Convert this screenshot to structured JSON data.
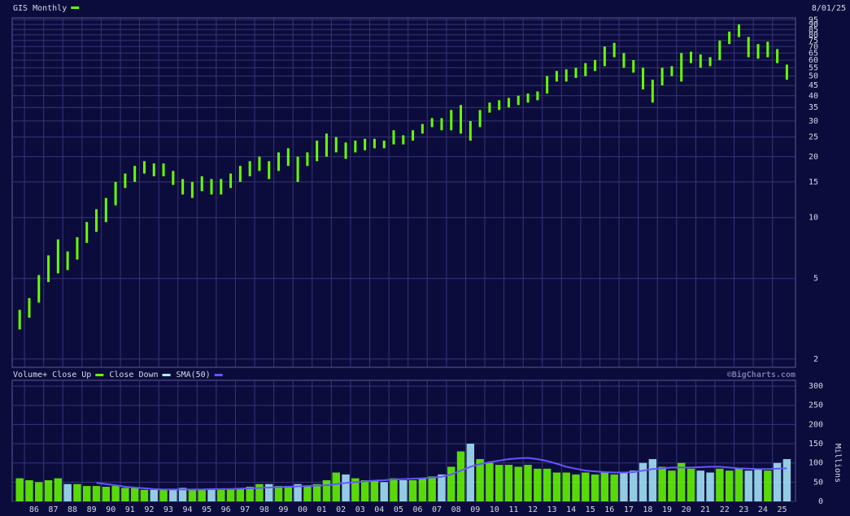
{
  "chart_data": [
    {
      "type": "range",
      "title": "GIS Monthly",
      "date": "8/01/25",
      "color": "#66ff00",
      "log_scale": true,
      "grid": true,
      "x": [
        1985.75,
        1986.25,
        1986.75,
        1987.25,
        1987.75,
        1988.25,
        1988.75,
        1989.25,
        1989.75,
        1990.25,
        1990.75,
        1991.25,
        1991.75,
        1992.25,
        1992.75,
        1993.25,
        1993.75,
        1994.25,
        1994.75,
        1995.25,
        1995.75,
        1996.25,
        1996.75,
        1997.25,
        1997.75,
        1998.25,
        1998.75,
        1999.25,
        1999.75,
        2000.25,
        2000.75,
        2001.25,
        2001.75,
        2002.25,
        2002.75,
        2003.25,
        2003.75,
        2004.25,
        2004.75,
        2005.25,
        2005.75,
        2006.25,
        2006.75,
        2007.25,
        2007.75,
        2008.25,
        2008.75,
        2009.25,
        2009.75,
        2010.25,
        2010.75,
        2011.25,
        2011.75,
        2012.25,
        2012.75,
        2013.25,
        2013.75,
        2014.25,
        2014.75,
        2015.25,
        2015.75,
        2016.25,
        2016.75,
        2017.25,
        2017.75,
        2018.25,
        2018.75,
        2019.25,
        2019.75,
        2020.25,
        2020.75,
        2021.25,
        2021.75,
        2022.25,
        2022.75,
        2023.25,
        2023.75,
        2024.25,
        2024.75,
        2025.25,
        2025.75
      ],
      "low": [
        2.8,
        3.2,
        3.8,
        4.8,
        5.3,
        5.5,
        6.2,
        7.5,
        8.5,
        9.5,
        11.5,
        14,
        15,
        16.5,
        16,
        16,
        14.5,
        13,
        12.5,
        13.5,
        13,
        13,
        14,
        15,
        16,
        17,
        15.5,
        17,
        18,
        15,
        18,
        19,
        20,
        21,
        19.5,
        21,
        21.5,
        22,
        22,
        23,
        23,
        24,
        26,
        28,
        27,
        27,
        26,
        24,
        28,
        33,
        34,
        35,
        36,
        37,
        38,
        41,
        47,
        47,
        49,
        50,
        53,
        56,
        62,
        55,
        52,
        43,
        37,
        45,
        50,
        47,
        58,
        55,
        56,
        60,
        72,
        78,
        62,
        61,
        62,
        58,
        48
      ],
      "high": [
        3.5,
        4,
        5.2,
        6.5,
        7.8,
        6.8,
        8,
        9.5,
        11,
        12.5,
        15,
        16.5,
        18,
        19,
        18.5,
        18.5,
        17,
        15.5,
        15,
        16,
        15.5,
        15.5,
        16.5,
        18,
        19,
        20,
        19,
        21,
        22,
        20,
        21,
        24,
        26,
        25,
        23.5,
        24,
        24.5,
        24.5,
        24,
        27,
        25.5,
        27,
        29,
        31,
        31,
        34,
        36,
        30,
        34,
        37,
        38,
        39,
        40,
        41,
        42,
        50,
        53,
        54,
        55,
        58,
        60,
        70,
        73,
        65,
        60,
        55,
        48,
        55,
        56,
        65,
        66,
        64,
        62,
        75,
        83,
        90,
        78,
        72,
        74,
        68,
        57
      ],
      "xlim": [
        1985.36,
        2026.2
      ],
      "xticks": [
        {
          "value": 1986,
          "label": "86"
        },
        {
          "value": 1987,
          "label": "87"
        },
        {
          "value": 1988,
          "label": "88"
        },
        {
          "value": 1989,
          "label": "89"
        },
        {
          "value": 1990,
          "label": "90"
        },
        {
          "value": 1991,
          "label": "91"
        },
        {
          "value": 1992,
          "label": "92"
        },
        {
          "value": 1993,
          "label": "93"
        },
        {
          "value": 1994,
          "label": "94"
        },
        {
          "value": 1995,
          "label": "95"
        },
        {
          "value": 1996,
          "label": "96"
        },
        {
          "value": 1997,
          "label": "97"
        },
        {
          "value": 1998,
          "label": "98"
        },
        {
          "value": 1999,
          "label": "99"
        },
        {
          "value": 2000,
          "label": "00"
        },
        {
          "value": 2001,
          "label": "01"
        },
        {
          "value": 2002,
          "label": "02"
        },
        {
          "value": 2003,
          "label": "03"
        },
        {
          "value": 2004,
          "label": "04"
        },
        {
          "value": 2005,
          "label": "05"
        },
        {
          "value": 2006,
          "label": "06"
        },
        {
          "value": 2007,
          "label": "07"
        },
        {
          "value": 2008,
          "label": "08"
        },
        {
          "value": 2009,
          "label": "09"
        },
        {
          "value": 2010,
          "label": "10"
        },
        {
          "value": 2011,
          "label": "11"
        },
        {
          "value": 2012,
          "label": "12"
        },
        {
          "value": 2013,
          "label": "13"
        },
        {
          "value": 2014,
          "label": "14"
        },
        {
          "value": 2015,
          "label": "15"
        },
        {
          "value": 2016,
          "label": "16"
        },
        {
          "value": 2017,
          "label": "17"
        },
        {
          "value": 2018,
          "label": "18"
        },
        {
          "value": 2019,
          "label": "19"
        },
        {
          "value": 2020,
          "label": "20"
        },
        {
          "value": 2021,
          "label": "21"
        },
        {
          "value": 2022,
          "label": "22"
        },
        {
          "value": 2023,
          "label": "23"
        },
        {
          "value": 2024,
          "label": "24"
        },
        {
          "value": 2025,
          "label": "25"
        }
      ],
      "ylim": [
        1.82,
        97
      ],
      "yticks": [
        2,
        5,
        10,
        15,
        20,
        25,
        30,
        35,
        40,
        45,
        50,
        55,
        60,
        65,
        70,
        75,
        80,
        85,
        90,
        95
      ]
    },
    {
      "type": "bar",
      "credit": "©BigCharts.com",
      "y_label": "Millions",
      "grid": true,
      "ylim": [
        0,
        315
      ],
      "yticks": [
        0,
        50,
        100,
        150,
        200,
        250,
        300
      ],
      "series": [
        {
          "name": "Volume+ Close Up",
          "color": "#66ff00",
          "values": [
            60,
            55,
            50,
            55,
            60,
            null,
            45,
            40,
            40,
            38,
            40,
            35,
            35,
            30,
            null,
            30,
            null,
            null,
            30,
            30,
            null,
            30,
            32,
            35,
            38,
            45,
            null,
            40,
            40,
            null,
            40,
            45,
            55,
            75,
            null,
            60,
            55,
            55,
            null,
            60,
            null,
            55,
            60,
            65,
            null,
            90,
            130,
            null,
            110,
            100,
            95,
            95,
            90,
            95,
            85,
            85,
            75,
            75,
            70,
            75,
            70,
            75,
            70,
            null,
            null,
            null,
            null,
            90,
            80,
            100,
            85,
            null,
            null,
            85,
            80,
            85,
            null,
            null,
            80,
            null,
            null
          ]
        },
        {
          "name": "Close Down",
          "color": "#aaeeff",
          "values": [
            null,
            null,
            null,
            null,
            null,
            45,
            null,
            null,
            null,
            null,
            null,
            null,
            null,
            null,
            30,
            null,
            32,
            35,
            null,
            null,
            30,
            null,
            null,
            null,
            null,
            null,
            45,
            null,
            null,
            45,
            null,
            null,
            null,
            null,
            70,
            null,
            null,
            null,
            50,
            null,
            55,
            null,
            null,
            null,
            70,
            null,
            null,
            150,
            null,
            null,
            null,
            null,
            null,
            null,
            null,
            null,
            null,
            null,
            null,
            null,
            null,
            null,
            null,
            75,
            80,
            100,
            110,
            null,
            null,
            null,
            null,
            80,
            75,
            null,
            null,
            null,
            80,
            85,
            null,
            100,
            110
          ]
        },
        {
          "name": "SMA(50)",
          "color": "#6655ff",
          "type": "line",
          "values": [
            null,
            null,
            null,
            null,
            null,
            null,
            null,
            null,
            48,
            45,
            42,
            38,
            36,
            34,
            32,
            31,
            31,
            31,
            31,
            31,
            32,
            32,
            32,
            33,
            34,
            35,
            36,
            37,
            38,
            39,
            40,
            41,
            42,
            45,
            48,
            50,
            52,
            54,
            55,
            57,
            58,
            59,
            60,
            62,
            64,
            70,
            80,
            90,
            97,
            102,
            106,
            110,
            112,
            113,
            110,
            105,
            98,
            90,
            85,
            80,
            78,
            76,
            75,
            75,
            76,
            80,
            84,
            86,
            88,
            88,
            88,
            89,
            90,
            90,
            88,
            86,
            85,
            84,
            84,
            85,
            86
          ]
        }
      ]
    }
  ]
}
